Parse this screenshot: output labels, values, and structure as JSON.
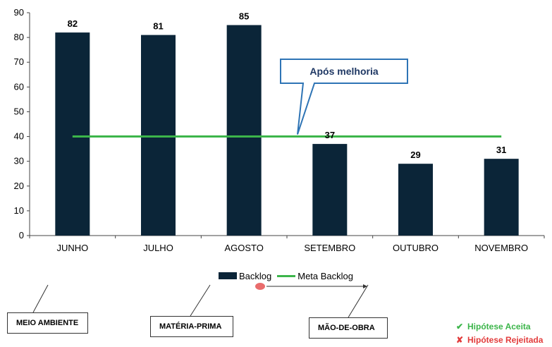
{
  "chart_data": {
    "type": "bar",
    "categories": [
      "JUNHO",
      "JULHO",
      "AGOSTO",
      "SETEMBRO",
      "OUTUBRO",
      "NOVEMBRO"
    ],
    "series": [
      {
        "name": "Backlog",
        "type": "bar",
        "values": [
          82,
          81,
          85,
          37,
          29,
          31
        ],
        "color": "#0b2538"
      },
      {
        "name": "Meta Backlog",
        "type": "line",
        "values": [
          40,
          40,
          40,
          40,
          40,
          40
        ],
        "color": "#3cb54a"
      }
    ],
    "ylim": [
      0,
      90
    ],
    "yticks": [
      0,
      10,
      20,
      30,
      40,
      50,
      60,
      70,
      80,
      90
    ],
    "data_labels": [
      "82",
      "81",
      "85",
      "37",
      "29",
      "31"
    ],
    "annotation": "Após melhoria",
    "legend_position": "bottom",
    "grid": false
  },
  "legend": {
    "bar_label": "Backlog",
    "line_label": "Meta Backlog"
  },
  "categories_boxes": {
    "meio_ambiente": "MEIO AMBIENTE",
    "materia_prima": "MATÉRIA-PRIMA",
    "mao_de_obra": "MÃO-DE-OBRA"
  },
  "hypotheses": {
    "accepted_label": "Hipótese Aceita",
    "accepted_color": "#3cb54a",
    "accepted_icon": "checkmark-icon",
    "rejected_label": "Hipótese Rejeitada",
    "rejected_color": "#e23b3b",
    "rejected_icon": "x-icon"
  }
}
